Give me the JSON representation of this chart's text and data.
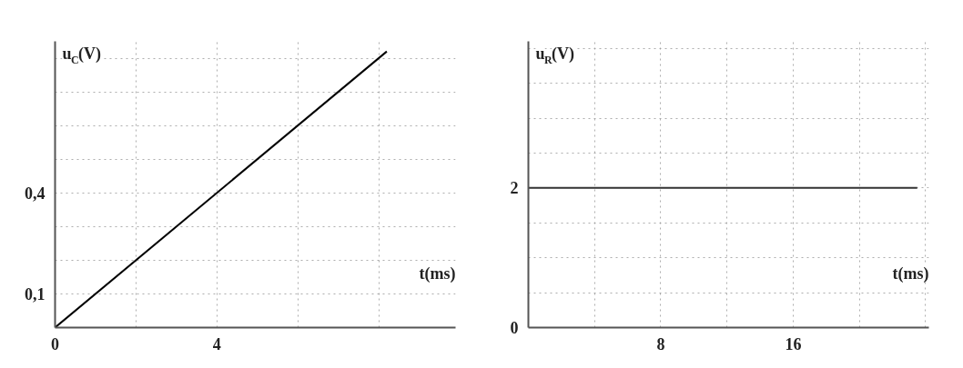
{
  "chart_data": [
    {
      "type": "line",
      "xlabel": "t(ms)",
      "ylabel": "u$_{C}$(V)",
      "x": [
        0,
        8.2
      ],
      "values": [
        0,
        0.82
      ],
      "color": "#000000",
      "xlim": [
        0,
        9.9
      ],
      "ylim": [
        0,
        0.85
      ],
      "xticks": [
        {
          "value": 0,
          "label": "0"
        },
        {
          "value": 2,
          "label": null
        },
        {
          "value": 4,
          "label": "4"
        },
        {
          "value": 6,
          "label": null
        },
        {
          "value": 8,
          "label": null
        }
      ],
      "yticks": [
        {
          "value": 0,
          "label": null
        },
        {
          "value": 0.1,
          "label": "0,1"
        },
        {
          "value": 0.2,
          "label": null
        },
        {
          "value": 0.3,
          "label": null
        },
        {
          "value": 0.4,
          "label": "0,4"
        },
        {
          "value": 0.5,
          "label": null
        },
        {
          "value": 0.6,
          "label": null
        },
        {
          "value": 0.7,
          "label": null
        },
        {
          "value": 0.8,
          "label": null
        }
      ],
      "grid": true,
      "line_style": "solid",
      "marker": "none"
    },
    {
      "type": "line",
      "xlabel": "t(ms)",
      "ylabel": "u$_{R}$(V)",
      "x": [
        0,
        23.5
      ],
      "values": [
        2,
        2
      ],
      "color": "#333333",
      "xlim": [
        0,
        24.2
      ],
      "ylim": [
        0,
        4.1
      ],
      "xticks": [
        {
          "value": 0,
          "label": null
        },
        {
          "value": 4,
          "label": null
        },
        {
          "value": 8,
          "label": "8"
        },
        {
          "value": 12,
          "label": null
        },
        {
          "value": 16,
          "label": "16"
        },
        {
          "value": 20,
          "label": null
        },
        {
          "value": 24,
          "label": null
        }
      ],
      "yticks": [
        {
          "value": 0,
          "label": "0"
        },
        {
          "value": 0.5,
          "label": null
        },
        {
          "value": 1,
          "label": null
        },
        {
          "value": 1.5,
          "label": null
        },
        {
          "value": 2,
          "label": "2"
        },
        {
          "value": 2.5,
          "label": null
        },
        {
          "value": 3,
          "label": null
        },
        {
          "value": 3.5,
          "label": null
        },
        {
          "value": 4,
          "label": null
        }
      ],
      "grid": true,
      "line_style": "solid",
      "marker": "none"
    }
  ]
}
